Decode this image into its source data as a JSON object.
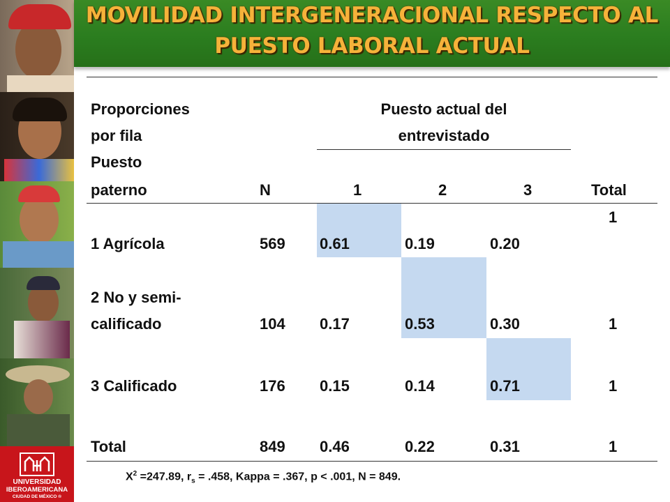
{
  "title": {
    "line1": "MOVILIDAD INTERGENERACIONAL RESPECTO AL",
    "line2": "PUESTO LABORAL ACTUAL"
  },
  "logo": {
    "line1": "UNIVERSIDAD",
    "line2": "IBEROAMERICANA",
    "line3": "CIUDAD DE MÉXICO ®"
  },
  "table": {
    "header": {
      "col0_line1": "Proporciones",
      "col0_line2": "por fila",
      "col0_line3": "Puesto",
      "col0_line4": "paterno",
      "group_line1": "Puesto actual del",
      "group_line2": "entrevistado",
      "n": "N",
      "c1": "1",
      "c2": "2",
      "c3": "3",
      "total": "Total"
    },
    "rows": [
      {
        "label_line1": "",
        "label_line2": "1 Agrícola",
        "n": "569",
        "c1": "0.61",
        "c2": "0.19",
        "c3": "0.20",
        "total": "1"
      },
      {
        "label_line1": "2 No y semi-",
        "label_line2": "calificado",
        "n": "104",
        "c1": "0.17",
        "c2": "0.53",
        "c3": "0.30",
        "total": "1"
      },
      {
        "label_line1": "",
        "label_line2": "3 Calificado",
        "n": "176",
        "c1": "0.15",
        "c2": "0.14",
        "c3": "0.71",
        "total": "1"
      },
      {
        "label_line1": "",
        "label_line2": "Total",
        "n": "849",
        "c1": "0.46",
        "c2": "0.22",
        "c3": "0.31",
        "total": "1"
      }
    ],
    "highlight_color": "#c5d9f0"
  },
  "footnote": {
    "x": "X",
    "x_sup": "2",
    "part1": " =247.89, r",
    "r_sub": "s",
    "part2": " = .458, Kappa = .367, p < .001, N = 849."
  },
  "colors": {
    "banner_green": "#2b7d1f",
    "title_orange": "#f6b23a",
    "logo_red": "#c8151b"
  }
}
